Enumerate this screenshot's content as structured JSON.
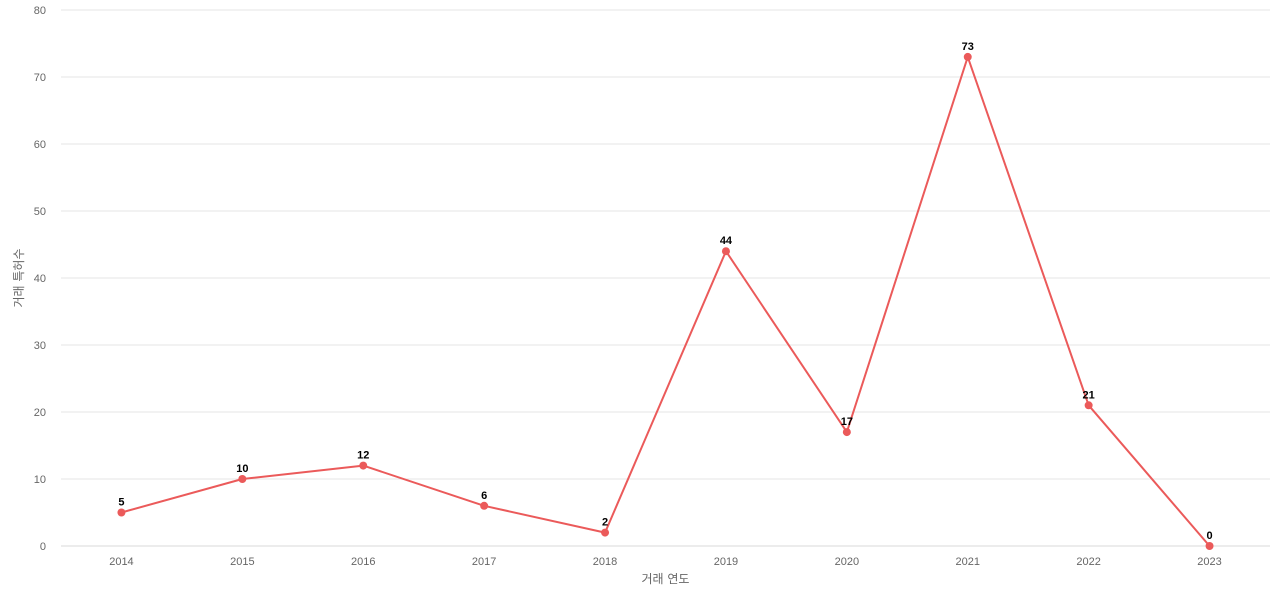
{
  "chart_data": {
    "type": "line",
    "title": "",
    "xlabel": "거래 연도",
    "ylabel": "거래 특허수",
    "categories": [
      "2014",
      "2015",
      "2016",
      "2017",
      "2018",
      "2019",
      "2020",
      "2021",
      "2022",
      "2023"
    ],
    "series": [
      {
        "values": [
          5,
          10,
          12,
          6,
          2,
          44,
          17,
          73,
          21,
          0
        ],
        "color": "#eb5a5a"
      }
    ],
    "ylim": [
      0,
      80
    ],
    "yticks": [
      0,
      10,
      20,
      30,
      40,
      50,
      60,
      70,
      80
    ],
    "grid": true,
    "data_labels": true,
    "legend": "none"
  }
}
